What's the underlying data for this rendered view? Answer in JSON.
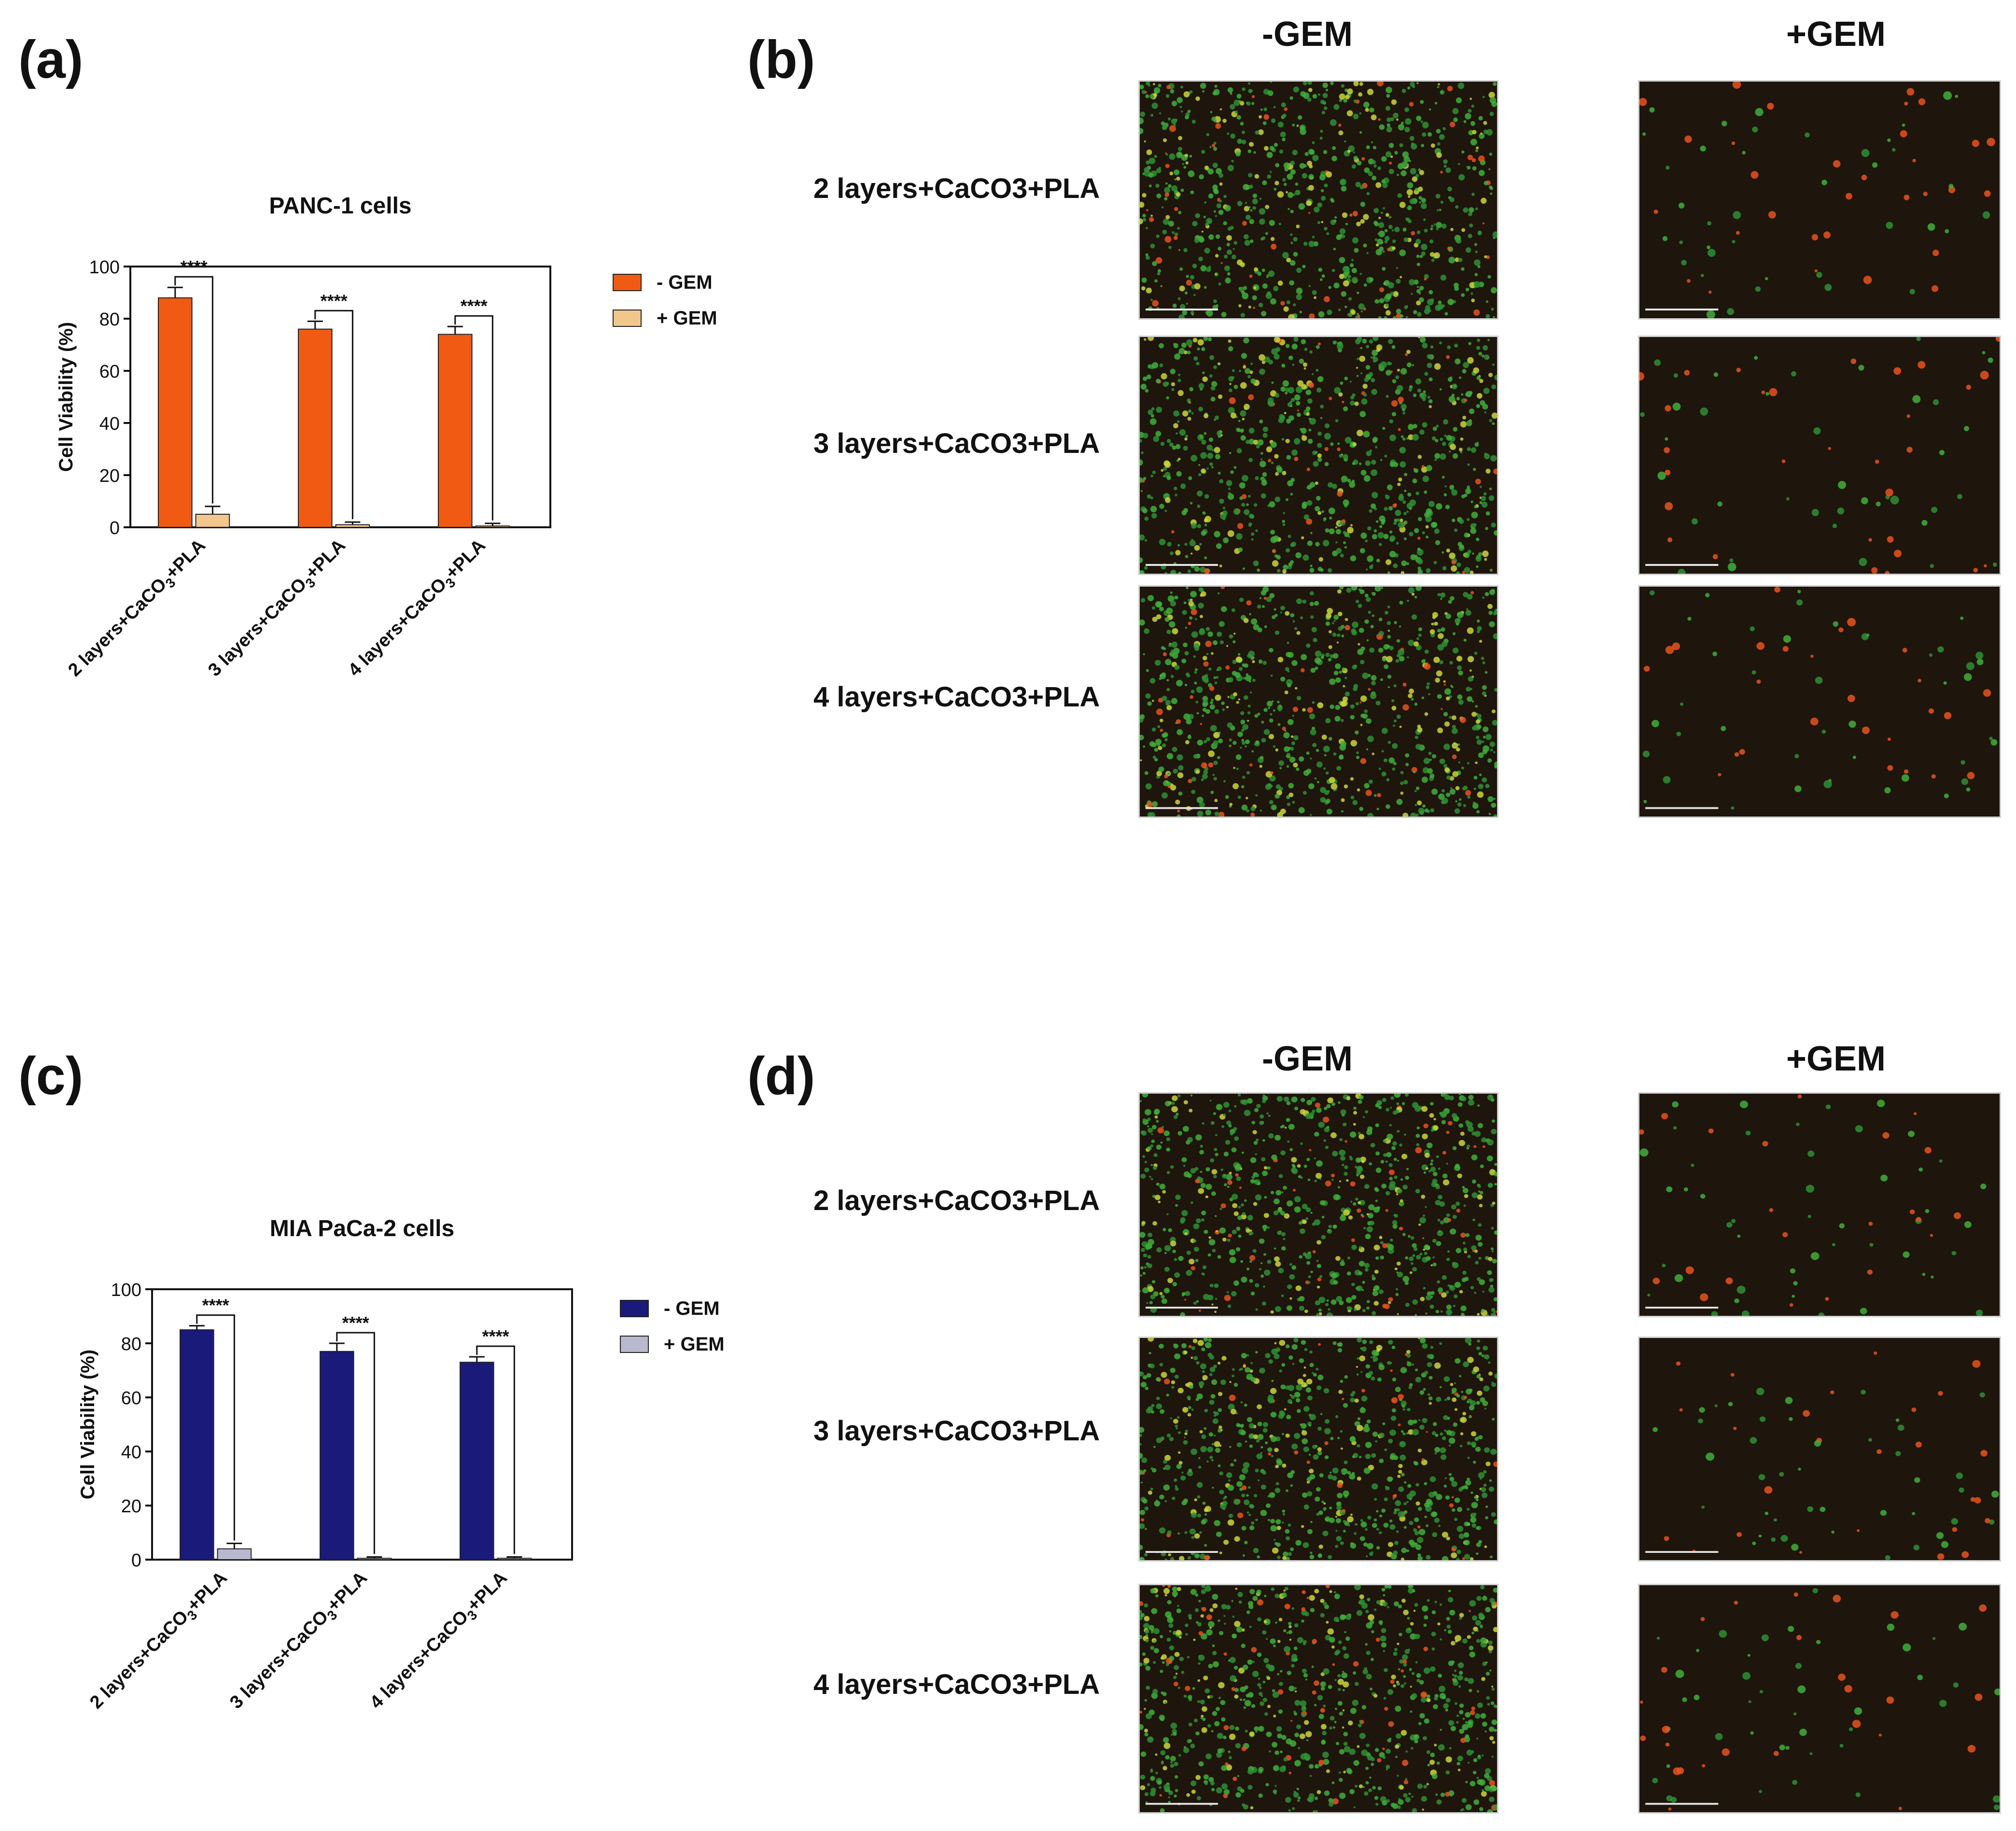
{
  "panels": {
    "a": "(a)",
    "b": "(b)",
    "c": "(c)",
    "d": "(d)"
  },
  "chart_data": [
    {
      "type": "bar",
      "title": "PANC-1 cells",
      "ylabel": "Cell Viability (%)",
      "xlabel": "",
      "ylim": [
        0,
        100
      ],
      "yticks": [
        0,
        20,
        40,
        60,
        80,
        100
      ],
      "categories": [
        "2 layers+CaCO3+PLA",
        "3 layers+CaCO3+PLA",
        "4 layers+CaCO3+PLA"
      ],
      "series": [
        {
          "name": "- GEM",
          "values": [
            88,
            76,
            74
          ],
          "errors": [
            4,
            3,
            3
          ],
          "color": "#f05a12"
        },
        {
          "name": "+ GEM",
          "values": [
            5,
            1,
            0.5
          ],
          "errors": [
            3,
            1,
            1
          ],
          "color": "#f3c68c"
        }
      ],
      "significance": [
        "****",
        "****",
        "****"
      ],
      "legend": "right"
    },
    {
      "type": "bar",
      "title": "MIA PaCa-2 cells",
      "ylabel": "Cell Viability (%)",
      "xlabel": "",
      "ylim": [
        0,
        100
      ],
      "yticks": [
        0,
        20,
        40,
        60,
        80,
        100
      ],
      "categories": [
        "2 layers+CaCO3+PLA",
        "3 layers+CaCO3+PLA",
        "4 layers+CaCO3+PLA"
      ],
      "series": [
        {
          "name": "- GEM",
          "values": [
            85,
            77,
            73
          ],
          "errors": [
            1.5,
            3,
            2
          ],
          "color": "#1a1a7a"
        },
        {
          "name": "+ GEM",
          "values": [
            4,
            0.5,
            0.5
          ],
          "errors": [
            2,
            0.5,
            0.5
          ],
          "color": "#b8b8cf"
        }
      ],
      "significance": [
        "****",
        "****",
        "****"
      ],
      "legend": "right"
    }
  ],
  "micrographs": {
    "column_headers": [
      "-GEM",
      "+GEM"
    ],
    "row_labels": [
      "2 layers+CaCO3+PLA",
      "3 layers+CaCO3+PLA",
      "4 layers+CaCO3+PLA"
    ]
  }
}
